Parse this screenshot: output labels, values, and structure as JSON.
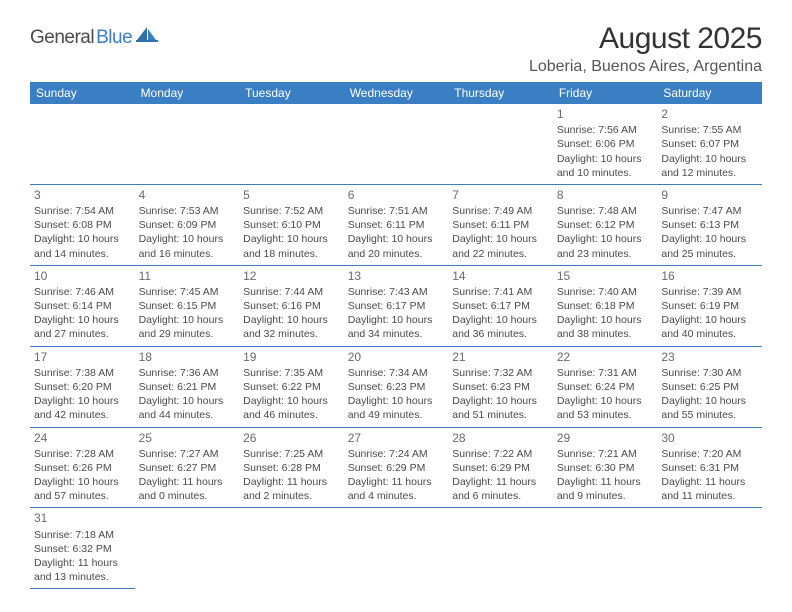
{
  "logo": {
    "part1": "General",
    "part2": "Blue"
  },
  "title": "August 2025",
  "location": "Loberia, Buenos Aires, Argentina",
  "day_headers": [
    "Sunday",
    "Monday",
    "Tuesday",
    "Wednesday",
    "Thursday",
    "Friday",
    "Saturday"
  ],
  "colors": {
    "header_bg": "#3a7fc4",
    "header_text": "#ffffff",
    "border": "#3a7fc4",
    "body_text": "#4a4a4a",
    "daynum": "#6a6a6a",
    "logo_gray": "#4a4a4a",
    "logo_blue": "#3a7fc4",
    "background": "#ffffff"
  },
  "typography": {
    "title_fontsize": 30,
    "location_fontsize": 16,
    "header_fontsize": 12,
    "cell_fontsize": 10.5,
    "daynum_fontsize": 12,
    "logo_fontsize": 19
  },
  "first_day_column": 5,
  "days": [
    {
      "n": "1",
      "sunrise": "Sunrise: 7:56 AM",
      "sunset": "Sunset: 6:06 PM",
      "dl1": "Daylight: 10 hours",
      "dl2": "and 10 minutes."
    },
    {
      "n": "2",
      "sunrise": "Sunrise: 7:55 AM",
      "sunset": "Sunset: 6:07 PM",
      "dl1": "Daylight: 10 hours",
      "dl2": "and 12 minutes."
    },
    {
      "n": "3",
      "sunrise": "Sunrise: 7:54 AM",
      "sunset": "Sunset: 6:08 PM",
      "dl1": "Daylight: 10 hours",
      "dl2": "and 14 minutes."
    },
    {
      "n": "4",
      "sunrise": "Sunrise: 7:53 AM",
      "sunset": "Sunset: 6:09 PM",
      "dl1": "Daylight: 10 hours",
      "dl2": "and 16 minutes."
    },
    {
      "n": "5",
      "sunrise": "Sunrise: 7:52 AM",
      "sunset": "Sunset: 6:10 PM",
      "dl1": "Daylight: 10 hours",
      "dl2": "and 18 minutes."
    },
    {
      "n": "6",
      "sunrise": "Sunrise: 7:51 AM",
      "sunset": "Sunset: 6:11 PM",
      "dl1": "Daylight: 10 hours",
      "dl2": "and 20 minutes."
    },
    {
      "n": "7",
      "sunrise": "Sunrise: 7:49 AM",
      "sunset": "Sunset: 6:11 PM",
      "dl1": "Daylight: 10 hours",
      "dl2": "and 22 minutes."
    },
    {
      "n": "8",
      "sunrise": "Sunrise: 7:48 AM",
      "sunset": "Sunset: 6:12 PM",
      "dl1": "Daylight: 10 hours",
      "dl2": "and 23 minutes."
    },
    {
      "n": "9",
      "sunrise": "Sunrise: 7:47 AM",
      "sunset": "Sunset: 6:13 PM",
      "dl1": "Daylight: 10 hours",
      "dl2": "and 25 minutes."
    },
    {
      "n": "10",
      "sunrise": "Sunrise: 7:46 AM",
      "sunset": "Sunset: 6:14 PM",
      "dl1": "Daylight: 10 hours",
      "dl2": "and 27 minutes."
    },
    {
      "n": "11",
      "sunrise": "Sunrise: 7:45 AM",
      "sunset": "Sunset: 6:15 PM",
      "dl1": "Daylight: 10 hours",
      "dl2": "and 29 minutes."
    },
    {
      "n": "12",
      "sunrise": "Sunrise: 7:44 AM",
      "sunset": "Sunset: 6:16 PM",
      "dl1": "Daylight: 10 hours",
      "dl2": "and 32 minutes."
    },
    {
      "n": "13",
      "sunrise": "Sunrise: 7:43 AM",
      "sunset": "Sunset: 6:17 PM",
      "dl1": "Daylight: 10 hours",
      "dl2": "and 34 minutes."
    },
    {
      "n": "14",
      "sunrise": "Sunrise: 7:41 AM",
      "sunset": "Sunset: 6:17 PM",
      "dl1": "Daylight: 10 hours",
      "dl2": "and 36 minutes."
    },
    {
      "n": "15",
      "sunrise": "Sunrise: 7:40 AM",
      "sunset": "Sunset: 6:18 PM",
      "dl1": "Daylight: 10 hours",
      "dl2": "and 38 minutes."
    },
    {
      "n": "16",
      "sunrise": "Sunrise: 7:39 AM",
      "sunset": "Sunset: 6:19 PM",
      "dl1": "Daylight: 10 hours",
      "dl2": "and 40 minutes."
    },
    {
      "n": "17",
      "sunrise": "Sunrise: 7:38 AM",
      "sunset": "Sunset: 6:20 PM",
      "dl1": "Daylight: 10 hours",
      "dl2": "and 42 minutes."
    },
    {
      "n": "18",
      "sunrise": "Sunrise: 7:36 AM",
      "sunset": "Sunset: 6:21 PM",
      "dl1": "Daylight: 10 hours",
      "dl2": "and 44 minutes."
    },
    {
      "n": "19",
      "sunrise": "Sunrise: 7:35 AM",
      "sunset": "Sunset: 6:22 PM",
      "dl1": "Daylight: 10 hours",
      "dl2": "and 46 minutes."
    },
    {
      "n": "20",
      "sunrise": "Sunrise: 7:34 AM",
      "sunset": "Sunset: 6:23 PM",
      "dl1": "Daylight: 10 hours",
      "dl2": "and 49 minutes."
    },
    {
      "n": "21",
      "sunrise": "Sunrise: 7:32 AM",
      "sunset": "Sunset: 6:23 PM",
      "dl1": "Daylight: 10 hours",
      "dl2": "and 51 minutes."
    },
    {
      "n": "22",
      "sunrise": "Sunrise: 7:31 AM",
      "sunset": "Sunset: 6:24 PM",
      "dl1": "Daylight: 10 hours",
      "dl2": "and 53 minutes."
    },
    {
      "n": "23",
      "sunrise": "Sunrise: 7:30 AM",
      "sunset": "Sunset: 6:25 PM",
      "dl1": "Daylight: 10 hours",
      "dl2": "and 55 minutes."
    },
    {
      "n": "24",
      "sunrise": "Sunrise: 7:28 AM",
      "sunset": "Sunset: 6:26 PM",
      "dl1": "Daylight: 10 hours",
      "dl2": "and 57 minutes."
    },
    {
      "n": "25",
      "sunrise": "Sunrise: 7:27 AM",
      "sunset": "Sunset: 6:27 PM",
      "dl1": "Daylight: 11 hours",
      "dl2": "and 0 minutes."
    },
    {
      "n": "26",
      "sunrise": "Sunrise: 7:25 AM",
      "sunset": "Sunset: 6:28 PM",
      "dl1": "Daylight: 11 hours",
      "dl2": "and 2 minutes."
    },
    {
      "n": "27",
      "sunrise": "Sunrise: 7:24 AM",
      "sunset": "Sunset: 6:29 PM",
      "dl1": "Daylight: 11 hours",
      "dl2": "and 4 minutes."
    },
    {
      "n": "28",
      "sunrise": "Sunrise: 7:22 AM",
      "sunset": "Sunset: 6:29 PM",
      "dl1": "Daylight: 11 hours",
      "dl2": "and 6 minutes."
    },
    {
      "n": "29",
      "sunrise": "Sunrise: 7:21 AM",
      "sunset": "Sunset: 6:30 PM",
      "dl1": "Daylight: 11 hours",
      "dl2": "and 9 minutes."
    },
    {
      "n": "30",
      "sunrise": "Sunrise: 7:20 AM",
      "sunset": "Sunset: 6:31 PM",
      "dl1": "Daylight: 11 hours",
      "dl2": "and 11 minutes."
    },
    {
      "n": "31",
      "sunrise": "Sunrise: 7:18 AM",
      "sunset": "Sunset: 6:32 PM",
      "dl1": "Daylight: 11 hours",
      "dl2": "and 13 minutes."
    }
  ]
}
